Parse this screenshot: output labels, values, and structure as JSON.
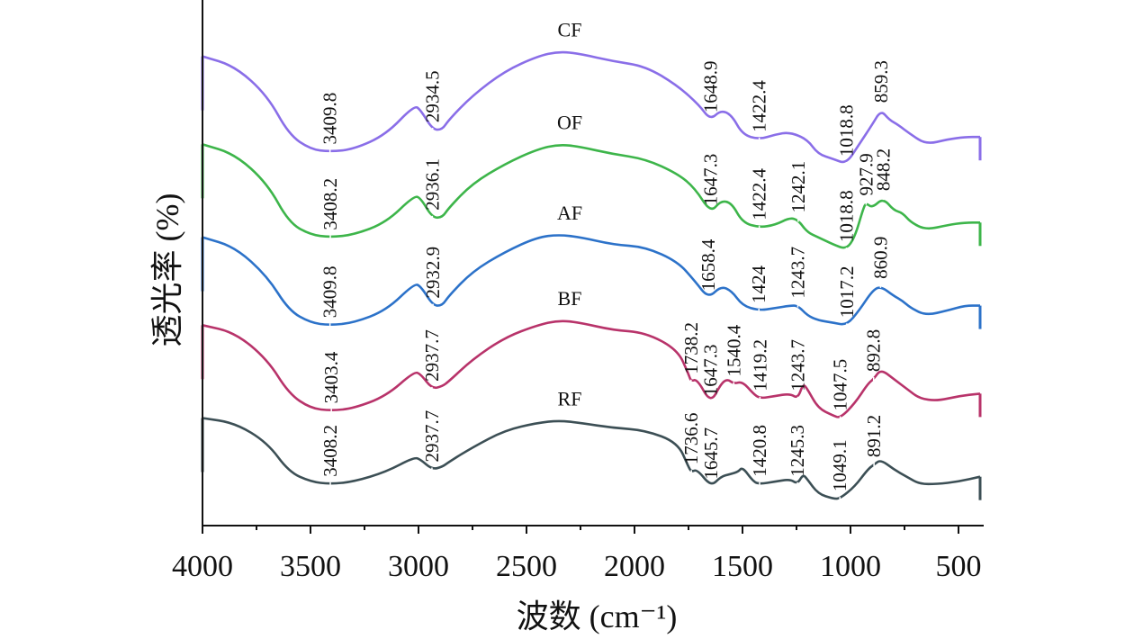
{
  "chart_data": {
    "type": "line",
    "title": "",
    "xlabel": "波数 (cm⁻¹)",
    "ylabel": "透光率 (%)",
    "xlim": [
      4000,
      400
    ],
    "x_reversed": true,
    "xticks": [
      4000,
      3500,
      3000,
      2500,
      2000,
      1500,
      1000,
      500
    ],
    "xtick_labels": [
      "4000",
      "3500",
      "3000",
      "2500",
      "2000",
      "1500",
      "1000",
      "500"
    ],
    "ylim": [
      0,
      100
    ],
    "y_ticks_shown": false,
    "grid": false,
    "legend": "inline-labels-above-curves",
    "series": [
      {
        "name": "CF",
        "color": "#8a6ee8",
        "offset": 84,
        "points": [
          [
            4000,
            12
          ],
          [
            3850,
            10
          ],
          [
            3700,
            4
          ],
          [
            3600,
            -4
          ],
          [
            3500,
            -7
          ],
          [
            3409.8,
            -7.5
          ],
          [
            3300,
            -7
          ],
          [
            3150,
            -4
          ],
          [
            3020,
            2
          ],
          [
            2990,
            1
          ],
          [
            2934.5,
            -3
          ],
          [
            2890,
            -3
          ],
          [
            2860,
            -1
          ],
          [
            2750,
            4
          ],
          [
            2600,
            9
          ],
          [
            2450,
            12
          ],
          [
            2350,
            13
          ],
          [
            2250,
            12.5
          ],
          [
            2100,
            11
          ],
          [
            1950,
            10
          ],
          [
            1800,
            6
          ],
          [
            1700,
            2
          ],
          [
            1648.9,
            -1
          ],
          [
            1600,
            1
          ],
          [
            1550,
            0
          ],
          [
            1500,
            -4
          ],
          [
            1422.4,
            -5
          ],
          [
            1350,
            -4
          ],
          [
            1280,
            -3.5
          ],
          [
            1200,
            -5
          ],
          [
            1150,
            -8
          ],
          [
            1080,
            -9
          ],
          [
            1018.8,
            -10
          ],
          [
            960,
            -6
          ],
          [
            900,
            -2
          ],
          [
            859.3,
            1
          ],
          [
            820,
            -1
          ],
          [
            780,
            -2
          ],
          [
            720,
            -4
          ],
          [
            650,
            -6
          ],
          [
            550,
            -5
          ],
          [
            470,
            -4.5
          ],
          [
            400,
            -4.5
          ]
        ],
        "peaks": [
          3409.8,
          2934.5,
          1648.9,
          1422.4,
          1018.8,
          859.3
        ],
        "peak_labels": [
          "3409.8",
          "2934.5",
          "1648.9",
          "1422.4",
          "1018.8",
          "859.3"
        ]
      },
      {
        "name": "OF",
        "color": "#3db54a",
        "offset": 66,
        "points": [
          [
            4000,
            12
          ],
          [
            3850,
            10
          ],
          [
            3700,
            4
          ],
          [
            3600,
            -4
          ],
          [
            3500,
            -6.5
          ],
          [
            3408.2,
            -7
          ],
          [
            3300,
            -6.5
          ],
          [
            3150,
            -4
          ],
          [
            3020,
            1.5
          ],
          [
            2990,
            1
          ],
          [
            2936.1,
            -3
          ],
          [
            2890,
            -3
          ],
          [
            2860,
            -1
          ],
          [
            2750,
            4
          ],
          [
            2600,
            8
          ],
          [
            2450,
            11
          ],
          [
            2350,
            12
          ],
          [
            2250,
            11.5
          ],
          [
            2100,
            10
          ],
          [
            1950,
            9
          ],
          [
            1800,
            6
          ],
          [
            1720,
            3
          ],
          [
            1647.3,
            -2
          ],
          [
            1600,
            0.5
          ],
          [
            1550,
            0
          ],
          [
            1500,
            -4
          ],
          [
            1422.4,
            -5
          ],
          [
            1350,
            -4.5
          ],
          [
            1280,
            -3
          ],
          [
            1242.1,
            -3.5
          ],
          [
            1200,
            -6
          ],
          [
            1150,
            -7
          ],
          [
            1080,
            -8.5
          ],
          [
            1018.8,
            -9.5
          ],
          [
            980,
            -7
          ],
          [
            940,
            -1
          ],
          [
            927.9,
            0
          ],
          [
            900,
            -1
          ],
          [
            848.2,
            1
          ],
          [
            800,
            -1.5
          ],
          [
            760,
            -2
          ],
          [
            720,
            -4
          ],
          [
            650,
            -5.5
          ],
          [
            550,
            -4.5
          ],
          [
            470,
            -4
          ],
          [
            400,
            -4
          ]
        ],
        "peaks": [
          3408.2,
          2936.1,
          1647.3,
          1422.4,
          1242.1,
          1018.8,
          927.9,
          848.2
        ],
        "peak_labels": [
          "3408.2",
          "2936.1",
          "1647.3",
          "1422.4",
          "1242.1",
          "1018.8",
          "927.9",
          "848.2"
        ]
      },
      {
        "name": "AF",
        "color": "#2c72c9",
        "offset": 48,
        "points": [
          [
            4000,
            11
          ],
          [
            3850,
            9
          ],
          [
            3700,
            3
          ],
          [
            3600,
            -4
          ],
          [
            3500,
            -6.5
          ],
          [
            3409.8,
            -7
          ],
          [
            3300,
            -6.5
          ],
          [
            3150,
            -4
          ],
          [
            3020,
            1.5
          ],
          [
            2990,
            1
          ],
          [
            2932.9,
            -3
          ],
          [
            2890,
            -3
          ],
          [
            2860,
            -1
          ],
          [
            2750,
            4
          ],
          [
            2600,
            8
          ],
          [
            2450,
            11
          ],
          [
            2350,
            11.5
          ],
          [
            2250,
            11
          ],
          [
            2100,
            9.5
          ],
          [
            1950,
            9
          ],
          [
            1800,
            6
          ],
          [
            1720,
            2
          ],
          [
            1658.4,
            -1.5
          ],
          [
            1600,
            1
          ],
          [
            1550,
            0
          ],
          [
            1500,
            -3
          ],
          [
            1424,
            -4
          ],
          [
            1350,
            -3.5
          ],
          [
            1280,
            -3
          ],
          [
            1243.7,
            -3
          ],
          [
            1200,
            -5
          ],
          [
            1150,
            -6
          ],
          [
            1080,
            -6.5
          ],
          [
            1017.2,
            -7
          ],
          [
            960,
            -4
          ],
          [
            900,
            0
          ],
          [
            860.9,
            1
          ],
          [
            800,
            -1
          ],
          [
            760,
            -2
          ],
          [
            720,
            -3.5
          ],
          [
            650,
            -5
          ],
          [
            550,
            -4
          ],
          [
            470,
            -3
          ],
          [
            400,
            -3
          ]
        ],
        "peaks": [
          3409.8,
          2932.9,
          1658.4,
          1424,
          1243.7,
          1017.2,
          860.9
        ],
        "peak_labels": [
          "3409.8",
          "2932.9",
          "1658.4",
          "1424",
          "1243.7",
          "1017.2",
          "860.9"
        ]
      },
      {
        "name": "BF",
        "color": "#b8336a",
        "offset": 30,
        "points": [
          [
            4000,
            11
          ],
          [
            3850,
            9.5
          ],
          [
            3700,
            4
          ],
          [
            3600,
            -3
          ],
          [
            3500,
            -6
          ],
          [
            3403.4,
            -6.5
          ],
          [
            3300,
            -6
          ],
          [
            3150,
            -3.5
          ],
          [
            3020,
            1.5
          ],
          [
            2990,
            1
          ],
          [
            2937.7,
            -2
          ],
          [
            2890,
            -1.5
          ],
          [
            2860,
            -0.5
          ],
          [
            2750,
            4
          ],
          [
            2600,
            8.5
          ],
          [
            2450,
            11
          ],
          [
            2350,
            12
          ],
          [
            2250,
            11.5
          ],
          [
            2100,
            10
          ],
          [
            1950,
            9.5
          ],
          [
            1800,
            6
          ],
          [
            1750,
            1
          ],
          [
            1738.2,
            -0.5
          ],
          [
            1710,
            0
          ],
          [
            1647.3,
            -5
          ],
          [
            1600,
            -1
          ],
          [
            1570,
            0
          ],
          [
            1540.4,
            -1
          ],
          [
            1500,
            -0.5
          ],
          [
            1450,
            -3
          ],
          [
            1419.2,
            -4
          ],
          [
            1350,
            -3.5
          ],
          [
            1280,
            -3
          ],
          [
            1243.7,
            -4
          ],
          [
            1220,
            -1
          ],
          [
            1200,
            -2
          ],
          [
            1150,
            -6
          ],
          [
            1080,
            -7.5
          ],
          [
            1047.5,
            -8
          ],
          [
            980,
            -5
          ],
          [
            920,
            -1
          ],
          [
            892.8,
            0
          ],
          [
            860,
            2
          ],
          [
            800,
            0
          ],
          [
            740,
            -2
          ],
          [
            680,
            -4
          ],
          [
            600,
            -4.5
          ],
          [
            500,
            -3.5
          ],
          [
            400,
            -3
          ]
        ],
        "peaks": [
          3403.4,
          2937.7,
          1738.2,
          1647.3,
          1540.4,
          1419.2,
          1243.7,
          1047.5,
          892.8
        ],
        "peak_labels": [
          "3403.4",
          "2937.7",
          "1738.2",
          "1647.3",
          "1540.4",
          "1419.2",
          "1243.7",
          "1047.5",
          "892.8"
        ]
      },
      {
        "name": "RF",
        "color": "#3c4f55",
        "offset": 12,
        "points": [
          [
            4000,
            10
          ],
          [
            3850,
            9
          ],
          [
            3700,
            5
          ],
          [
            3600,
            -1
          ],
          [
            3500,
            -3
          ],
          [
            3408.2,
            -3.5
          ],
          [
            3300,
            -3
          ],
          [
            3150,
            -1
          ],
          [
            3020,
            2
          ],
          [
            2990,
            1.5
          ],
          [
            2937.7,
            -0.5
          ],
          [
            2890,
            0
          ],
          [
            2860,
            1
          ],
          [
            2750,
            4
          ],
          [
            2600,
            7.5
          ],
          [
            2450,
            9
          ],
          [
            2350,
            9.5
          ],
          [
            2250,
            9
          ],
          [
            2100,
            8
          ],
          [
            1950,
            7.5
          ],
          [
            1800,
            5
          ],
          [
            1750,
            0
          ],
          [
            1736.6,
            -1
          ],
          [
            1710,
            -0.5
          ],
          [
            1645.7,
            -4
          ],
          [
            1600,
            -2
          ],
          [
            1560,
            -1.5
          ],
          [
            1520,
            -1
          ],
          [
            1500,
            0
          ],
          [
            1450,
            -3
          ],
          [
            1420.8,
            -3.5
          ],
          [
            1350,
            -3
          ],
          [
            1280,
            -2.5
          ],
          [
            1245.3,
            -3.5
          ],
          [
            1220,
            -1.5
          ],
          [
            1200,
            -2.5
          ],
          [
            1150,
            -5.5
          ],
          [
            1080,
            -6.5
          ],
          [
            1049.1,
            -6.5
          ],
          [
            980,
            -4
          ],
          [
            920,
            -0.5
          ],
          [
            891.2,
            0.5
          ],
          [
            860,
            1.5
          ],
          [
            800,
            -0.5
          ],
          [
            740,
            -2
          ],
          [
            680,
            -3.5
          ],
          [
            600,
            -3.5
          ],
          [
            500,
            -3
          ],
          [
            400,
            -2
          ]
        ],
        "peaks": [
          3408.2,
          2937.7,
          1736.6,
          1645.7,
          1420.8,
          1245.3,
          1049.1,
          891.2
        ],
        "peak_labels": [
          "3408.2",
          "2937.7",
          "1736.6",
          "1645.7",
          "1420.8",
          "1245.3",
          "1049.1",
          "891.2"
        ]
      }
    ]
  }
}
